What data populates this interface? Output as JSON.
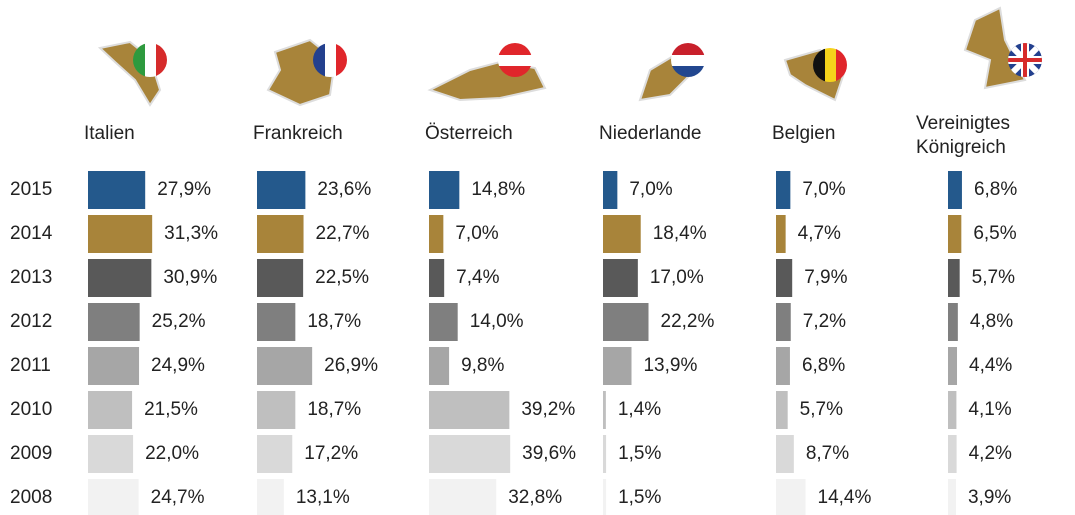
{
  "chart_data": {
    "type": "bar",
    "orientation": "horizontal",
    "categories": [
      "2015",
      "2014",
      "2013",
      "2012",
      "2011",
      "2010",
      "2009",
      "2008"
    ],
    "colors": [
      "#24598c",
      "#a8843a",
      "#595959",
      "#7f7f7f",
      "#a6a6a6",
      "#bfbfbf",
      "#d9d9d9",
      "#f2f2f2"
    ],
    "series": [
      {
        "name": "Italien",
        "values": [
          27.9,
          31.3,
          30.9,
          25.2,
          24.9,
          21.5,
          22.0,
          24.7
        ],
        "value_labels": [
          "27,9%",
          "31,3%",
          "30,9%",
          "25,2%",
          "24,9%",
          "21,5%",
          "22,0%",
          "24,7%"
        ]
      },
      {
        "name": "Frankreich",
        "values": [
          23.6,
          22.7,
          22.5,
          18.7,
          26.9,
          18.7,
          17.2,
          13.1
        ],
        "value_labels": [
          "23,6%",
          "22,7%",
          "22,5%",
          "18,7%",
          "26,9%",
          "18,7%",
          "17,2%",
          "13,1%"
        ]
      },
      {
        "name": "Österreich",
        "values": [
          14.8,
          7.0,
          7.4,
          14.0,
          9.8,
          39.2,
          39.6,
          32.8
        ],
        "value_labels": [
          "14,8%",
          "7,0%",
          "7,4%",
          "14,0%",
          "9,8%",
          "39,2%",
          "39,6%",
          "32,8%"
        ]
      },
      {
        "name": "Niederlande",
        "values": [
          7.0,
          18.4,
          17.0,
          22.2,
          13.9,
          1.4,
          1.5,
          1.5
        ],
        "value_labels": [
          "7,0%",
          "18,4%",
          "17,0%",
          "22,2%",
          "13,9%",
          "1,4%",
          "1,5%",
          "1,5%"
        ]
      },
      {
        "name": "Belgien",
        "values": [
          7.0,
          4.7,
          7.9,
          7.2,
          6.8,
          5.7,
          8.7,
          14.4
        ],
        "value_labels": [
          "7,0%",
          "4,7%",
          "7,9%",
          "7,2%",
          "6,8%",
          "5,7%",
          "8,7%",
          "14,4%"
        ]
      },
      {
        "name": "Vereinigtes Königreich",
        "values": [
          6.8,
          6.5,
          5.7,
          4.8,
          4.4,
          4.1,
          4.2,
          3.9
        ],
        "value_labels": [
          "6,8%",
          "6,5%",
          "5,7%",
          "4,8%",
          "4,4%",
          "4,1%",
          "4,2%",
          "3,9%"
        ]
      }
    ]
  }
}
